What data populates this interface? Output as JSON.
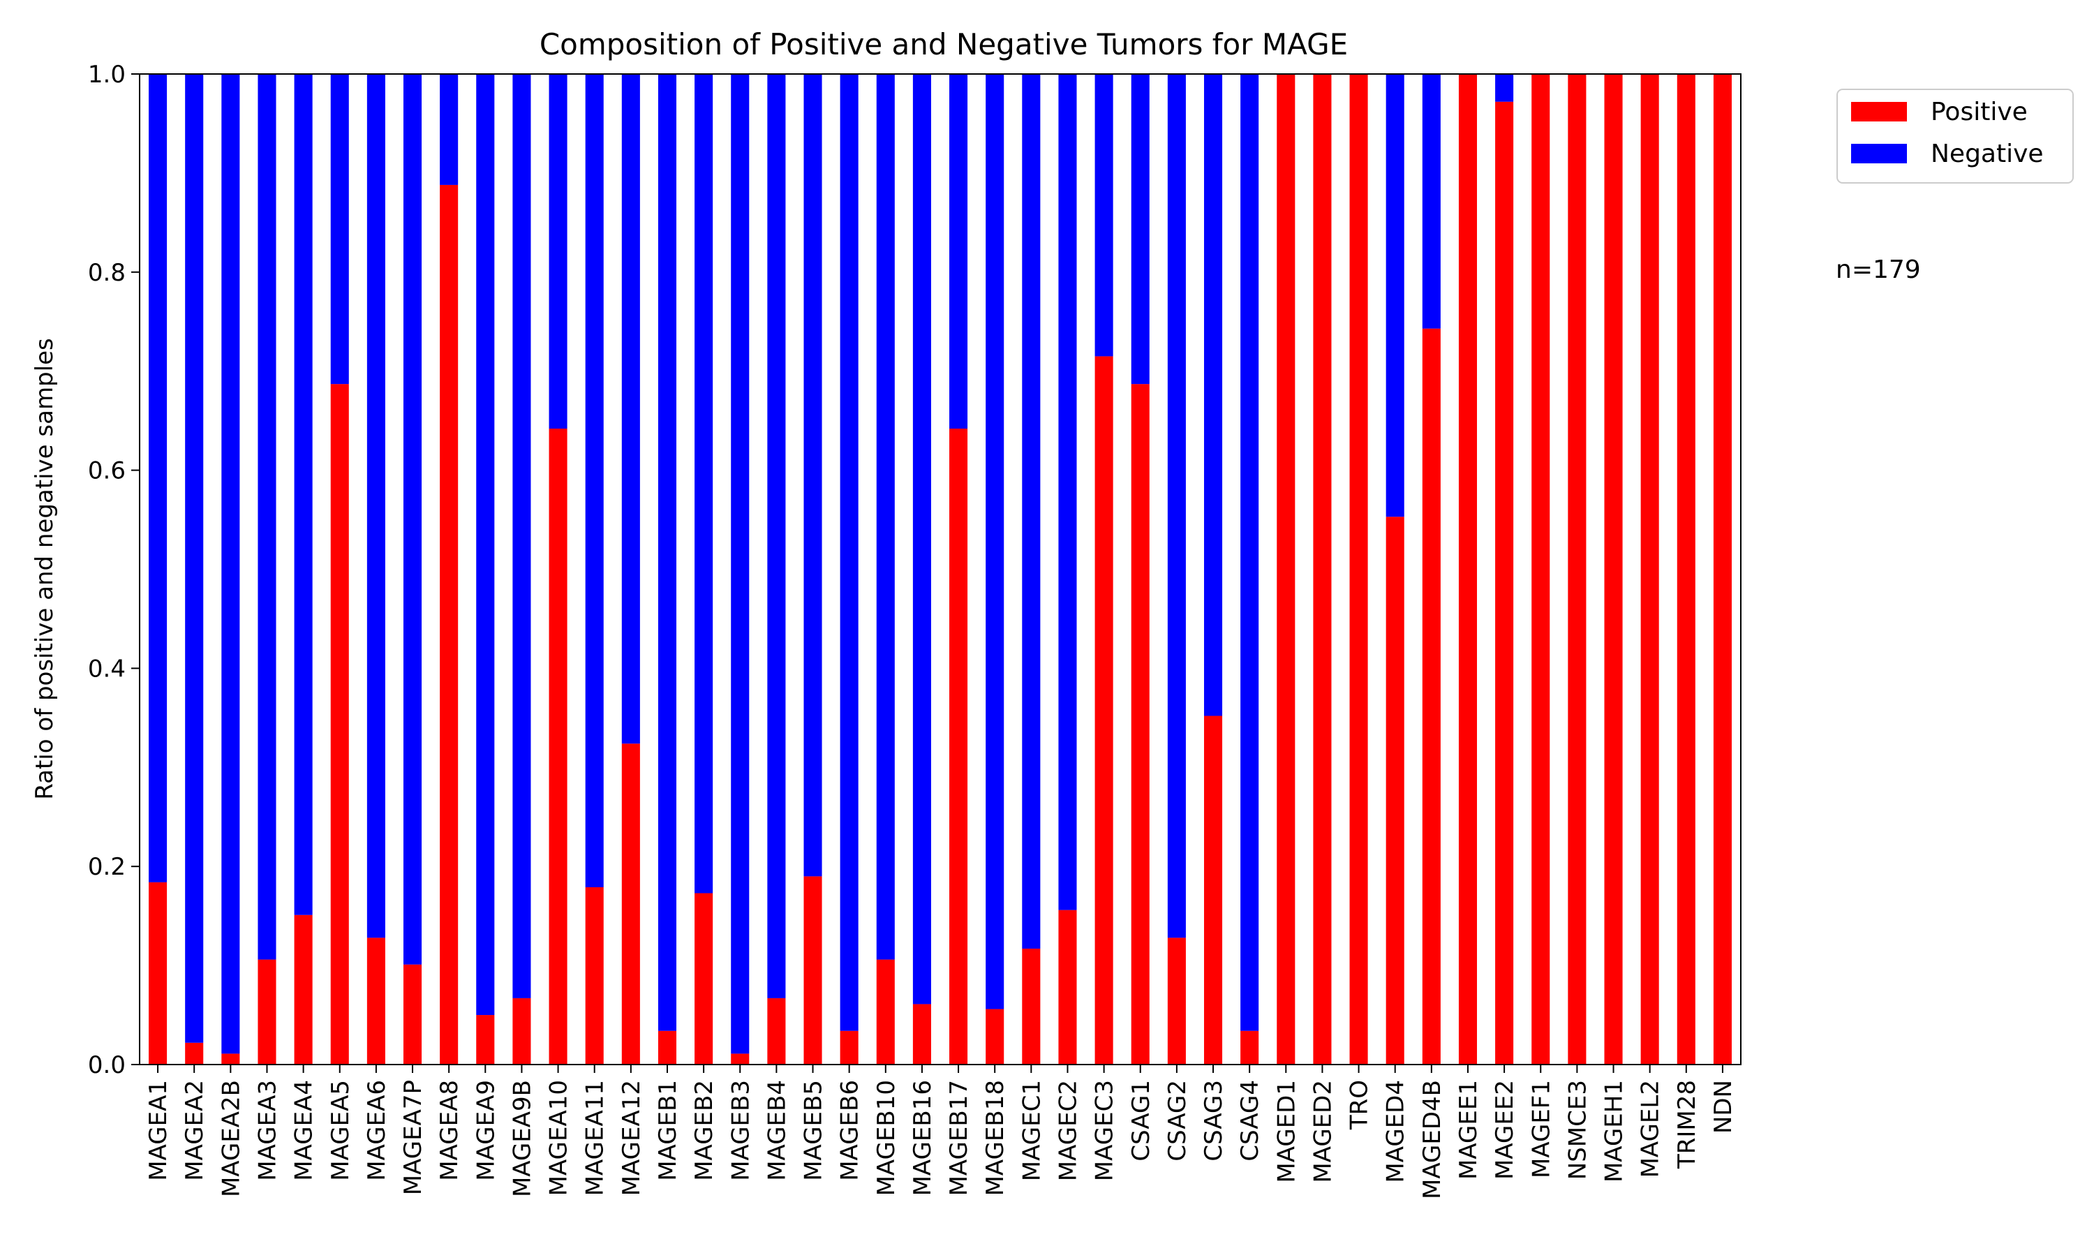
{
  "chart_data": {
    "type": "bar",
    "stacked": true,
    "title": "Composition of Positive and Negative Tumors for MAGE",
    "xlabel": "",
    "ylabel": "Ratio of positive and negative samples",
    "ylim": [
      0,
      1.0
    ],
    "yticks": [
      "0.0",
      "0.2",
      "0.4",
      "0.6",
      "0.8",
      "1.0"
    ],
    "grid": false,
    "legend_position": "outside-top-right",
    "annotation": "n=179",
    "categories": [
      "MAGEA1",
      "MAGEA2",
      "MAGEA2B",
      "MAGEA3",
      "MAGEA4",
      "MAGEA5",
      "MAGEA6",
      "MAGEA7P",
      "MAGEA8",
      "MAGEA9",
      "MAGEA9B",
      "MAGEA10",
      "MAGEA11",
      "MAGEA12",
      "MAGEB1",
      "MAGEB2",
      "MAGEB3",
      "MAGEB4",
      "MAGEB5",
      "MAGEB6",
      "MAGEB10",
      "MAGEB16",
      "MAGEB17",
      "MAGEB18",
      "MAGEC1",
      "MAGEC2",
      "MAGEC3",
      "CSAG1",
      "CSAG2",
      "CSAG3",
      "CSAG4",
      "MAGED1",
      "MAGED2",
      "TRO",
      "MAGED4",
      "MAGED4B",
      "MAGEE1",
      "MAGEE2",
      "MAGEF1",
      "NSMCE3",
      "MAGEH1",
      "MAGEL2",
      "TRIM28",
      "NDN"
    ],
    "series": [
      {
        "name": "Positive",
        "color": "#ff0000",
        "values": [
          0.184,
          0.022,
          0.011,
          0.106,
          0.151,
          0.687,
          0.128,
          0.101,
          0.888,
          0.05,
          0.067,
          0.642,
          0.179,
          0.324,
          0.034,
          0.173,
          0.011,
          0.067,
          0.19,
          0.034,
          0.106,
          0.061,
          0.642,
          0.056,
          0.117,
          0.156,
          0.715,
          0.687,
          0.128,
          0.352,
          0.034,
          1.0,
          1.0,
          1.0,
          0.553,
          0.743,
          1.0,
          0.972,
          1.0,
          1.0,
          1.0,
          1.0,
          1.0,
          1.0
        ]
      },
      {
        "name": "Negative",
        "color": "#0000ff",
        "values": [
          0.816,
          0.978,
          0.989,
          0.894,
          0.849,
          0.313,
          0.872,
          0.899,
          0.112,
          0.95,
          0.933,
          0.358,
          0.821,
          0.676,
          0.966,
          0.827,
          0.989,
          0.933,
          0.81,
          0.966,
          0.894,
          0.939,
          0.358,
          0.944,
          0.883,
          0.844,
          0.285,
          0.313,
          0.872,
          0.648,
          0.966,
          0.0,
          0.0,
          0.0,
          0.447,
          0.257,
          0.0,
          0.028,
          0.0,
          0.0,
          0.0,
          0.0,
          0.0,
          0.0
        ]
      }
    ]
  }
}
